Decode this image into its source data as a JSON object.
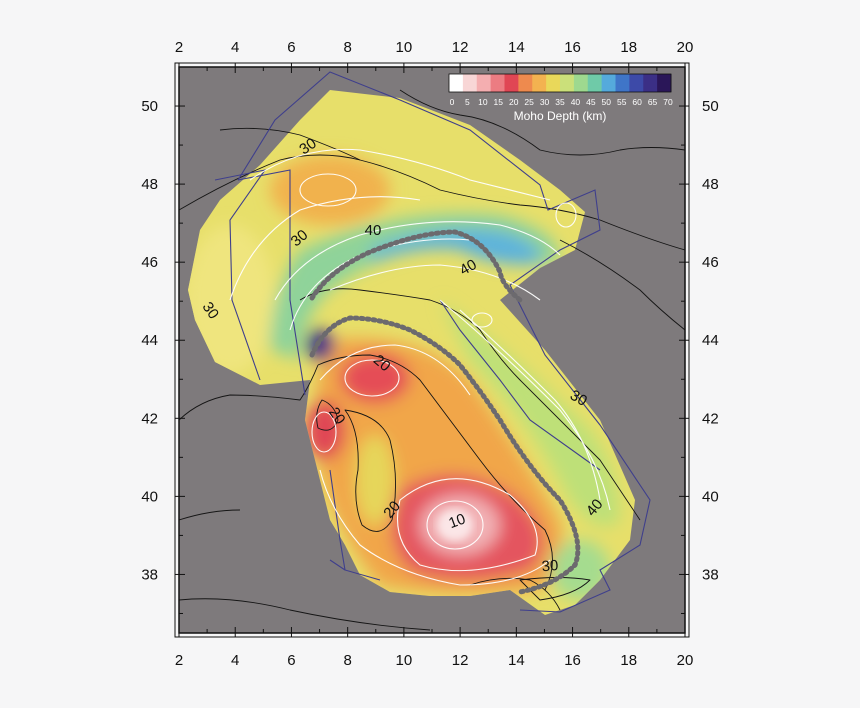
{
  "map": {
    "lon_range": [
      2,
      20
    ],
    "lat_range": [
      36.5,
      51
    ],
    "x_ticks": [
      "2",
      "4",
      "6",
      "8",
      "10",
      "12",
      "14",
      "16",
      "18",
      "20"
    ],
    "y_ticks": [
      "38",
      "40",
      "42",
      "44",
      "46",
      "48",
      "50"
    ],
    "background_color": "#7e7a7c",
    "frame_color": "#111111"
  },
  "colorbar": {
    "title": "Moho Depth (km)",
    "tick_labels": [
      "0",
      "5",
      "10",
      "15",
      "20",
      "25",
      "30",
      "35",
      "40",
      "45",
      "50",
      "55",
      "60",
      "65",
      "70"
    ],
    "colors": [
      "#ffffff",
      "#f8d6d6",
      "#f4aeb0",
      "#ec7c82",
      "#e04654",
      "#ee8a4e",
      "#f3b250",
      "#e9d85a",
      "#cbe07a",
      "#9ed98f",
      "#6fcaa8",
      "#55aadc",
      "#3f75c8",
      "#3d4aa8",
      "#3b2f86",
      "#2a1658"
    ]
  },
  "contour_labels": [
    {
      "text": "30",
      "lon": 6.6,
      "lat": 48.95,
      "angle": -35
    },
    {
      "text": "30",
      "lon": 6.3,
      "lat": 46.6,
      "angle": -40
    },
    {
      "text": "40",
      "lon": 8.9,
      "lat": 46.8,
      "angle": 0
    },
    {
      "text": "40",
      "lon": 12.3,
      "lat": 45.85,
      "angle": -30
    },
    {
      "text": "30",
      "lon": 3.1,
      "lat": 44.75,
      "angle": 55
    },
    {
      "text": "20",
      "lon": 9.2,
      "lat": 43.4,
      "angle": 40
    },
    {
      "text": "20",
      "lon": 7.6,
      "lat": 42.05,
      "angle": 55
    },
    {
      "text": "30",
      "lon": 16.2,
      "lat": 42.5,
      "angle": 30
    },
    {
      "text": "20",
      "lon": 9.6,
      "lat": 39.65,
      "angle": -50
    },
    {
      "text": "10",
      "lon": 11.9,
      "lat": 39.35,
      "angle": -20
    },
    {
      "text": "40",
      "lon": 16.8,
      "lat": 39.7,
      "angle": -50
    },
    {
      "text": "30",
      "lon": 15.2,
      "lat": 38.2,
      "angle": -5
    }
  ]
}
